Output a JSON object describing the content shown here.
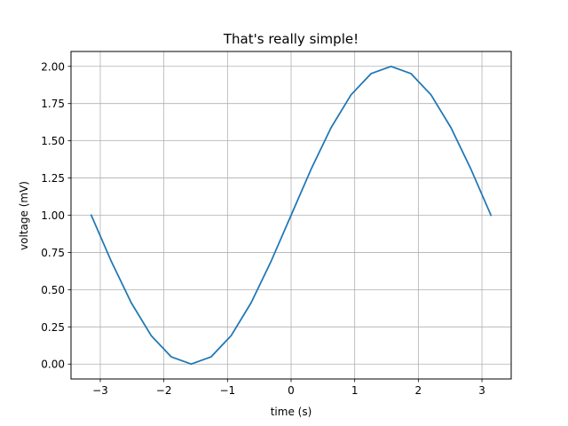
{
  "chart_data": {
    "type": "line",
    "title": "That's really simple!",
    "xlabel": "time (s)",
    "ylabel": "voltage (mV)",
    "xlim": [
      -3.46,
      3.46
    ],
    "ylim": [
      -0.1,
      2.1
    ],
    "xticks": [
      -3,
      -2,
      -1,
      0,
      1,
      2,
      3
    ],
    "xtick_labels": [
      "−3",
      "−2",
      "−1",
      "0",
      "1",
      "2",
      "3"
    ],
    "yticks": [
      0,
      0.25,
      0.5,
      0.75,
      1.0,
      1.25,
      1.5,
      1.75,
      2.0
    ],
    "ytick_labels": [
      "0.00",
      "0.25",
      "0.50",
      "0.75",
      "1.00",
      "1.25",
      "1.50",
      "1.75",
      "2.00"
    ],
    "grid": true,
    "series": [
      {
        "color": "#1f77b4",
        "x": [
          -3.1416,
          -2.8274,
          -2.5133,
          -2.1991,
          -1.885,
          -1.5708,
          -1.2566,
          -0.9425,
          -0.6283,
          -0.3142,
          0,
          0.3142,
          0.6283,
          0.9425,
          1.2566,
          1.5708,
          1.885,
          2.1991,
          2.5133,
          2.8274,
          3.1416
        ],
        "y": [
          1.0,
          0.691,
          0.412,
          0.191,
          0.049,
          0.0,
          0.049,
          0.191,
          0.412,
          0.691,
          1.0,
          1.309,
          1.588,
          1.809,
          1.951,
          2.0,
          1.951,
          1.809,
          1.588,
          1.309,
          1.0
        ]
      }
    ]
  }
}
